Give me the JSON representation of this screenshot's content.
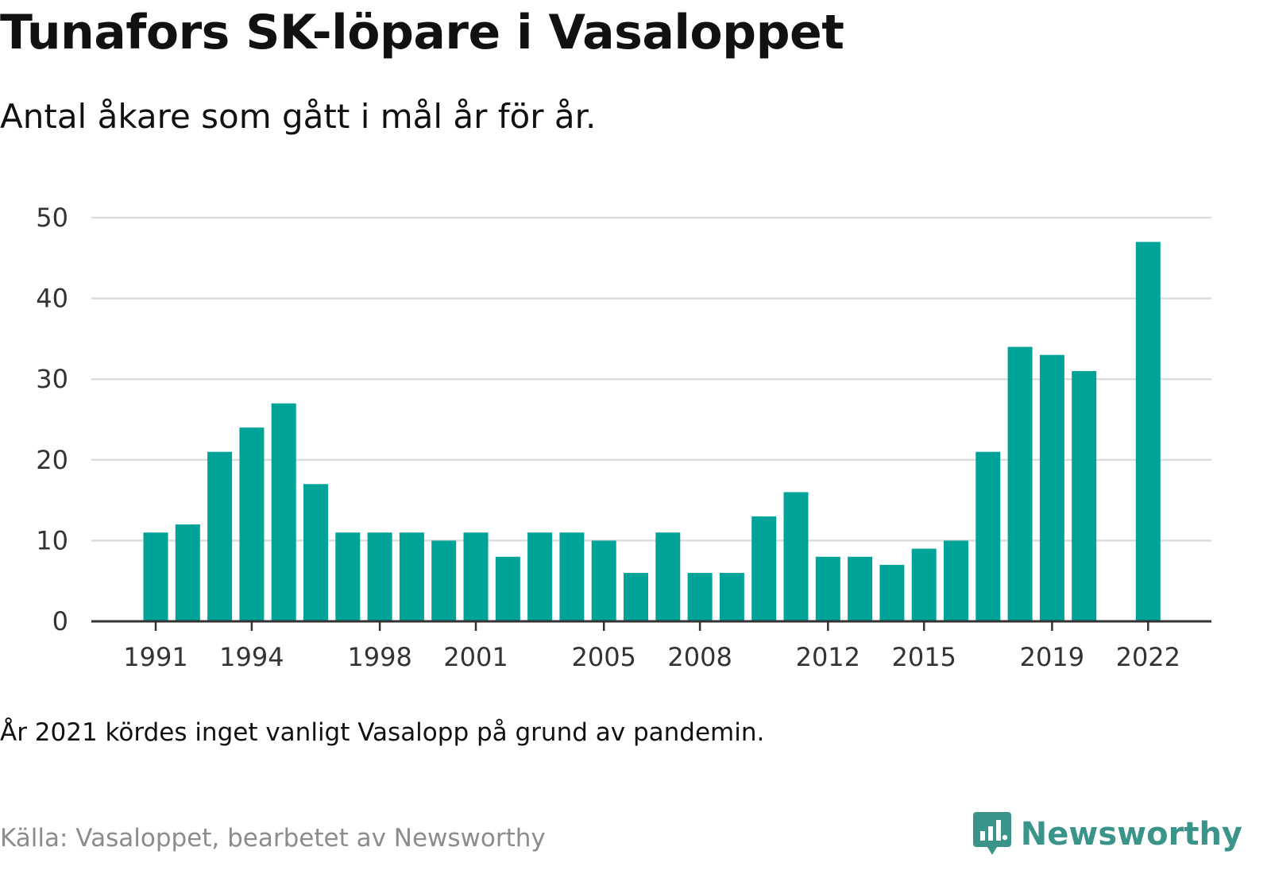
{
  "header": {
    "title": "Tunafors SK-löpare i Vasaloppet",
    "subtitle": "Antal åkare som gått i mål år för år."
  },
  "footer": {
    "note": "År 2021 kördes inget vanligt Vasalopp på grund av pandemin.",
    "source": "Källa: Vasaloppet, bearbetet av Newsworthy",
    "brand": "Newsworthy"
  },
  "colors": {
    "bar": "#00a398",
    "grid": "#dddddd",
    "axis": "#333333",
    "tick_text": "#333333",
    "brand": "#3b9489"
  },
  "chart_data": {
    "type": "bar",
    "title": "Tunafors SK-löpare i Vasaloppet",
    "subtitle": "Antal åkare som gått i mål år för år.",
    "xlabel": "",
    "ylabel": "",
    "ylim": [
      0,
      50
    ],
    "yticks": [
      0,
      10,
      20,
      30,
      40,
      50
    ],
    "xticks": [
      1991,
      1994,
      1998,
      2001,
      2005,
      2008,
      2012,
      2015,
      2019,
      2022
    ],
    "grid": true,
    "legend": "none",
    "x": [
      1991,
      1992,
      1993,
      1994,
      1995,
      1996,
      1997,
      1998,
      1999,
      2000,
      2001,
      2002,
      2003,
      2004,
      2005,
      2006,
      2007,
      2008,
      2009,
      2010,
      2011,
      2012,
      2013,
      2014,
      2015,
      2016,
      2017,
      2018,
      2019,
      2020,
      2021,
      2022
    ],
    "values": [
      11,
      12,
      21,
      24,
      27,
      17,
      11,
      11,
      11,
      10,
      11,
      8,
      11,
      11,
      10,
      6,
      11,
      6,
      6,
      13,
      16,
      8,
      8,
      7,
      9,
      10,
      21,
      34,
      33,
      31,
      null,
      47
    ]
  }
}
